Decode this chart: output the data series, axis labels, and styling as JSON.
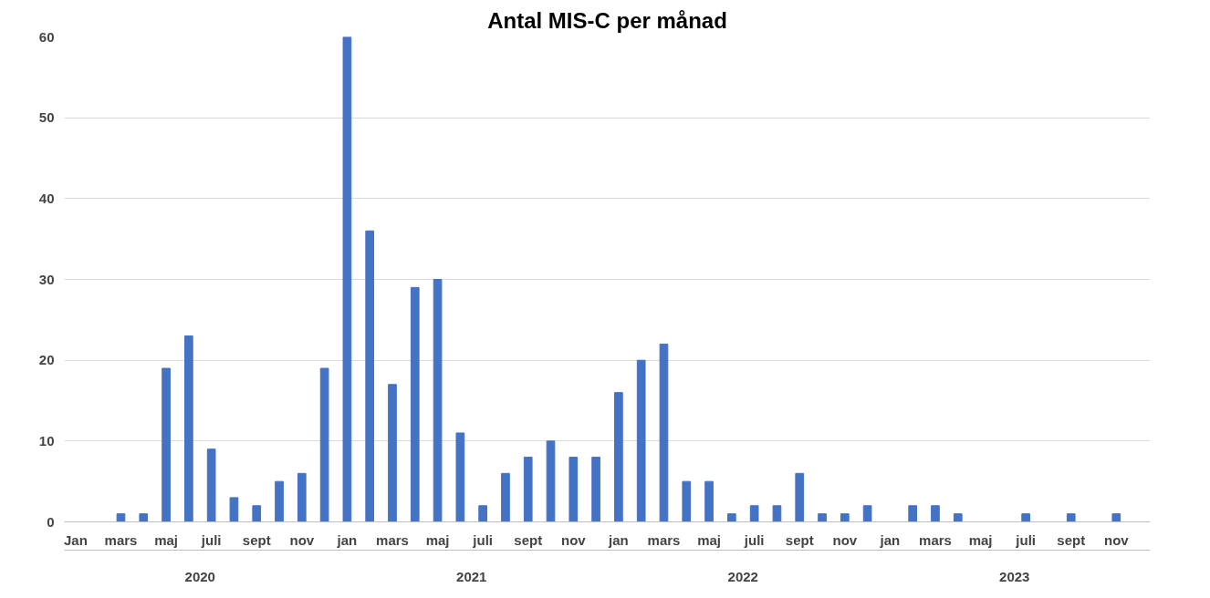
{
  "chart_data": {
    "type": "bar",
    "title": "Antal MIS-C per månad",
    "categories": [
      "Jan",
      null,
      "mars",
      null,
      "maj",
      null,
      "juli",
      null,
      "sept",
      null,
      "nov",
      null,
      "jan",
      null,
      "mars",
      null,
      "maj",
      null,
      "juli",
      null,
      "sept",
      null,
      "nov",
      null,
      "jan",
      null,
      "mars",
      null,
      "maj",
      null,
      "juli",
      null,
      "sept",
      null,
      "nov",
      null,
      "jan",
      null,
      "mars",
      null,
      "maj",
      null,
      "juli",
      null,
      "sept",
      null,
      "nov",
      null
    ],
    "values": [
      0,
      0,
      1,
      1,
      19,
      23,
      9,
      3,
      2,
      5,
      6,
      19,
      60,
      36,
      17,
      29,
      30,
      11,
      2,
      6,
      8,
      10,
      8,
      8,
      16,
      20,
      22,
      5,
      5,
      1,
      2,
      2,
      6,
      1,
      1,
      2,
      0,
      2,
      2,
      1,
      0,
      0,
      1,
      0,
      1,
      0,
      1,
      0
    ],
    "color": "#4472c4",
    "ylim": [
      0,
      60
    ],
    "yticks": [
      0,
      10,
      20,
      30,
      40,
      50,
      60
    ],
    "grid": "y",
    "annotations": [
      "2020",
      "2021",
      "2022",
      "2023"
    ]
  }
}
